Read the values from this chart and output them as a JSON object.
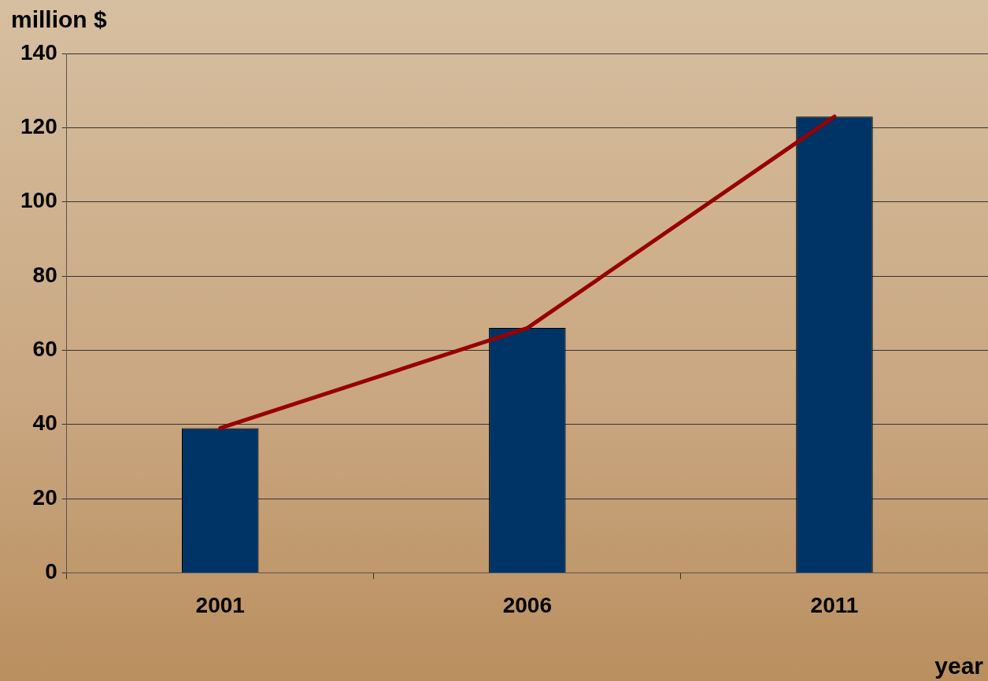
{
  "chart_data": {
    "type": "bar",
    "ylabel": "million $",
    "xlabel": "year",
    "categories": [
      "2001",
      "2006",
      "2011"
    ],
    "series": [
      {
        "color": "#003366",
        "values": [
          39,
          66,
          123
        ]
      },
      {
        "type": "line",
        "color": "#990000",
        "values": [
          39,
          66,
          123
        ]
      }
    ],
    "ylim": [
      0,
      140
    ],
    "yticks": [
      0,
      20,
      40,
      60,
      80,
      100,
      120,
      140
    ],
    "grid": "y",
    "legend": false,
    "marker": "none",
    "line_style": "solid"
  }
}
